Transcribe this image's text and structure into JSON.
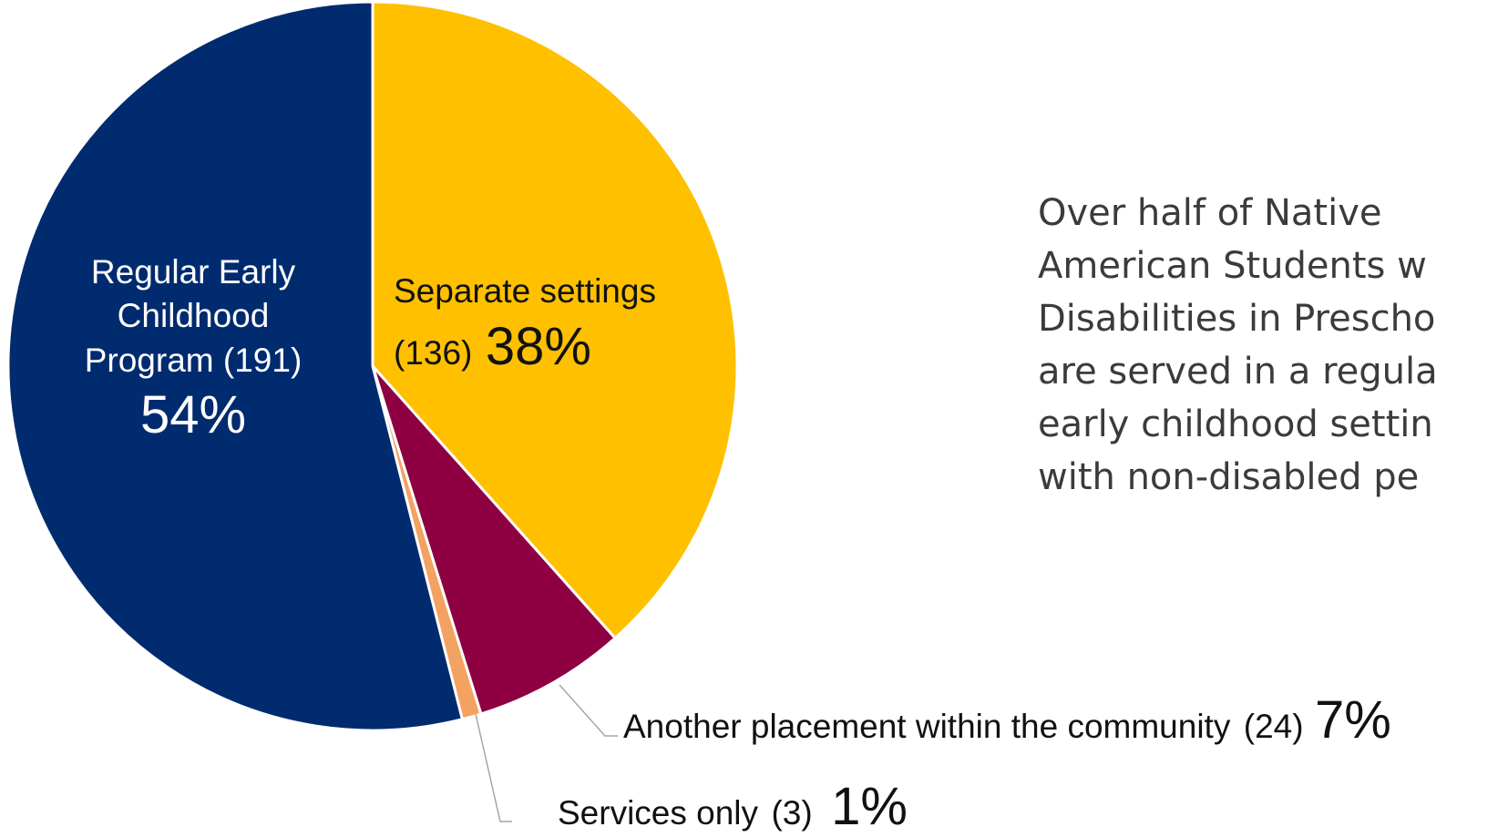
{
  "chart_data": {
    "type": "pie",
    "start_angle_deg": 0,
    "direction": "clockwise",
    "slices": [
      {
        "label": "Separate settings",
        "count": 136,
        "percent": 38,
        "color": "#FFC000",
        "count_text": "(136)",
        "percent_text": "38%"
      },
      {
        "label": "Another placement within the community",
        "count": 24,
        "percent": 7,
        "color": "#8E0042",
        "count_text": "(24)",
        "percent_text": "7%"
      },
      {
        "label": "Services only",
        "count": 3,
        "percent": 1,
        "color": "#F4A261",
        "count_text": "(3)",
        "percent_text": "1%"
      },
      {
        "label": "Regular Early Childhood Program",
        "count": 191,
        "percent": 54,
        "color": "#002B6F",
        "count_text": "(191)",
        "percent_text": "54%"
      }
    ]
  },
  "labels": {
    "separate_line1": "Separate settings",
    "separate_count": "(136)",
    "separate_pct": "38%",
    "regular_line1": "Regular Early",
    "regular_line2": "Childhood",
    "regular_line3": "Program (191)",
    "regular_pct": "54%",
    "another_text": "Another placement within the community",
    "another_count": "(24)",
    "another_pct": "7%",
    "services_text": "Services only",
    "services_count": "(3)",
    "services_pct": "1%"
  },
  "annotation": {
    "text": "Over half of Native\nAmerican Students w\nDisabilities in Prescho\nare served in a regula\nearly childhood settin\nwith non-disabled pe"
  }
}
